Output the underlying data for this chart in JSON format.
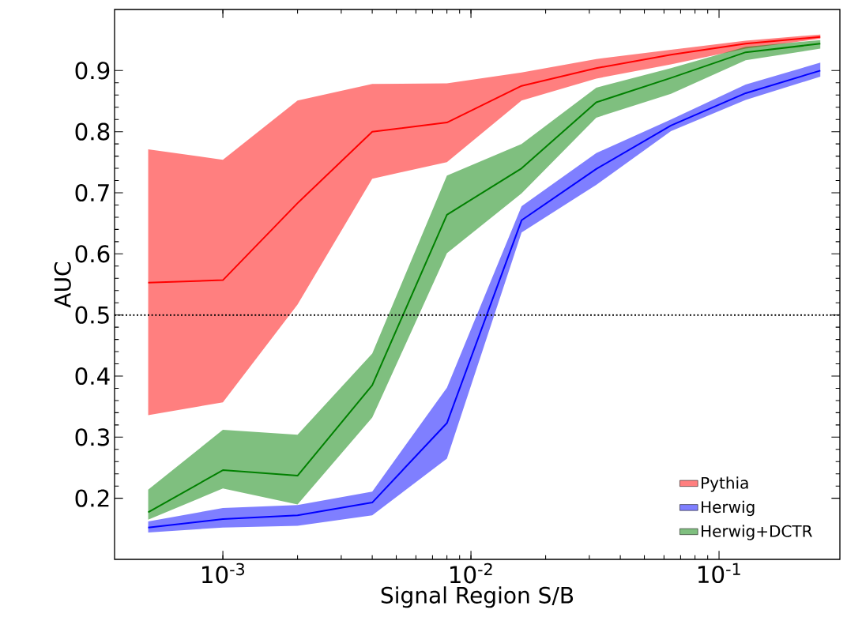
{
  "chart_data": {
    "type": "line",
    "xlabel": "Signal Region S/B",
    "ylabel": "AUC",
    "log": "x",
    "x": [
      0.0005,
      0.001,
      0.002,
      0.004,
      0.008,
      0.016,
      0.032,
      0.064,
      0.128,
      0.256
    ],
    "series": [
      {
        "name": "Pythia",
        "color": "#ff0000",
        "values": [
          0.553,
          0.557,
          0.683,
          0.8,
          0.815,
          0.875,
          0.904,
          0.926,
          0.944,
          0.955
        ],
        "lower": [
          0.336,
          0.357,
          0.517,
          0.723,
          0.75,
          0.851,
          0.887,
          0.91,
          0.936,
          0.952
        ],
        "upper": [
          0.771,
          0.754,
          0.851,
          0.878,
          0.879,
          0.897,
          0.919,
          0.934,
          0.949,
          0.959
        ]
      },
      {
        "name": "Herwig",
        "color": "#0000ff",
        "values": [
          0.152,
          0.166,
          0.172,
          0.193,
          0.323,
          0.655,
          0.739,
          0.81,
          0.863,
          0.9
        ],
        "lower": [
          0.144,
          0.152,
          0.155,
          0.172,
          0.265,
          0.635,
          0.713,
          0.801,
          0.852,
          0.89
        ],
        "upper": [
          0.162,
          0.184,
          0.189,
          0.211,
          0.381,
          0.678,
          0.765,
          0.82,
          0.877,
          0.913
        ]
      },
      {
        "name": "Herwig+DCTR",
        "color": "#008000",
        "values": [
          0.177,
          0.246,
          0.237,
          0.385,
          0.664,
          0.74,
          0.848,
          0.888,
          0.93,
          0.944
        ],
        "lower": [
          0.165,
          0.216,
          0.19,
          0.332,
          0.601,
          0.699,
          0.823,
          0.862,
          0.917,
          0.936
        ],
        "upper": [
          0.214,
          0.312,
          0.304,
          0.437,
          0.728,
          0.78,
          0.872,
          0.904,
          0.939,
          0.95
        ]
      }
    ],
    "xlim": [
      0.000366,
      0.307
    ],
    "ylim": [
      0.1,
      1.0
    ],
    "xticks": [
      {
        "value": 0.001,
        "label": "10$^{-3}$"
      },
      {
        "value": 0.01,
        "label": "10$^{-2}$"
      },
      {
        "value": 0.1,
        "label": "10$^{-1}$"
      }
    ],
    "yticks": [
      0.2,
      0.3,
      0.4,
      0.5,
      0.6,
      0.7,
      0.8,
      0.9
    ],
    "ref_lines": [
      {
        "axis": "y",
        "value": 0.5,
        "color": "#000000",
        "line_style": "dotted"
      }
    ],
    "legend": "bottom right",
    "grid": false
  }
}
